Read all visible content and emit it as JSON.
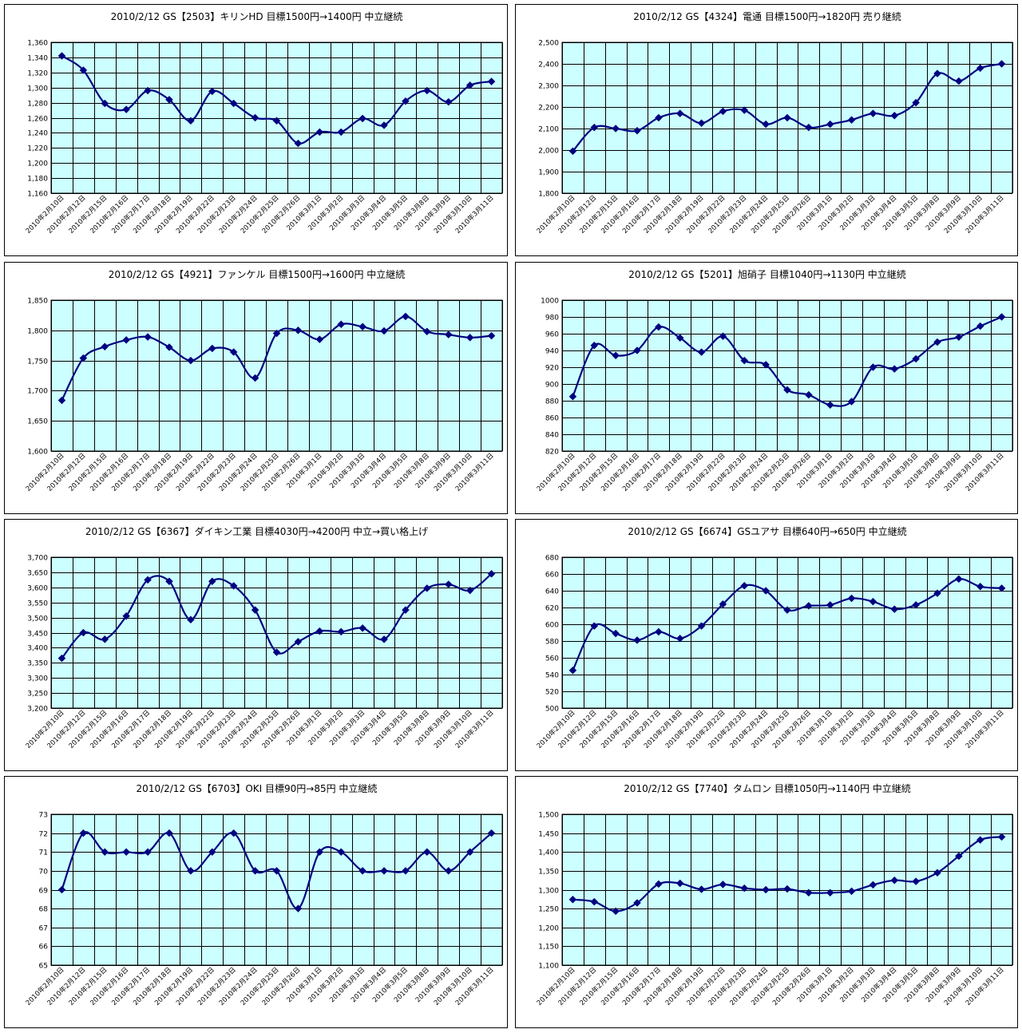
{
  "dates": [
    "2010年2月10日",
    "2010年2月12日",
    "2010年2月15日",
    "2010年2月16日",
    "2010年2月17日",
    "2010年2月18日",
    "2010年2月19日",
    "2010年2月22日",
    "2010年2月23日",
    "2010年2月24日",
    "2010年2月25日",
    "2010年2月26日",
    "2010年3月1日",
    "2010年3月2日",
    "2010年3月3日",
    "2010年3月4日",
    "2010年3月5日",
    "2010年3月8日",
    "2010年3月9日",
    "2010年3月10日",
    "2010年3月11日"
  ],
  "colors": {
    "plot_bg": "#ccffff",
    "line": "#000080",
    "grid": "#000000"
  },
  "chart_data": [
    {
      "type": "line",
      "title": "2010/2/12 GS【2503】キリンHD 目標1500円→1400円 中立継続",
      "ylim": [
        1160,
        1360
      ],
      "ystep": 20,
      "yformat": "comma",
      "x": [
        "2010年2月10日",
        "2010年2月12日",
        "2010年2月15日",
        "2010年2月16日",
        "2010年2月17日",
        "2010年2月18日",
        "2010年2月19日",
        "2010年2月22日",
        "2010年2月23日",
        "2010年2月24日",
        "2010年2月25日",
        "2010年2月26日",
        "2010年3月1日",
        "2010年3月2日",
        "2010年3月3日",
        "2010年3月4日",
        "2010年3月5日",
        "2010年3月8日",
        "2010年3月9日",
        "2010年3月10日",
        "2010年3月11日"
      ],
      "values": [
        1342,
        1323,
        1279,
        1271,
        1296,
        1284,
        1256,
        1295,
        1279,
        1260,
        1256,
        1226,
        1241,
        1241,
        1259,
        1250,
        1282,
        1296,
        1281,
        1303,
        1308
      ]
    },
    {
      "type": "line",
      "title": "2010/2/12 GS【4324】電通 目標1500円→1820円 売り継続",
      "ylim": [
        1800,
        2500
      ],
      "ystep": 100,
      "yformat": "comma",
      "x": [
        "2010年2月10日",
        "2010年2月12日",
        "2010年2月15日",
        "2010年2月16日",
        "2010年2月17日",
        "2010年2月18日",
        "2010年2月19日",
        "2010年2月22日",
        "2010年2月23日",
        "2010年2月24日",
        "2010年2月25日",
        "2010年2月26日",
        "2010年3月1日",
        "2010年3月2日",
        "2010年3月3日",
        "2010年3月4日",
        "2010年3月5日",
        "2010年3月8日",
        "2010年3月9日",
        "2010年3月10日",
        "2010年3月11日"
      ],
      "values": [
        1995,
        2105,
        2100,
        2090,
        2150,
        2170,
        2125,
        2180,
        2185,
        2120,
        2150,
        2105,
        2120,
        2140,
        2170,
        2160,
        2220,
        2355,
        2320,
        2380,
        2400
      ]
    },
    {
      "type": "line",
      "title": "2010/2/12 GS【4921】ファンケル 目標1500円→1600円 中立継続",
      "ylim": [
        1600,
        1850
      ],
      "ystep": 50,
      "yformat": "comma",
      "x": [
        "2010年2月10日",
        "2010年2月12日",
        "2010年2月15日",
        "2010年2月16日",
        "2010年2月17日",
        "2010年2月18日",
        "2010年2月19日",
        "2010年2月22日",
        "2010年2月23日",
        "2010年2月24日",
        "2010年2月25日",
        "2010年2月26日",
        "2010年3月1日",
        "2010年3月2日",
        "2010年3月3日",
        "2010年3月4日",
        "2010年3月5日",
        "2010年3月8日",
        "2010年3月9日",
        "2010年3月10日",
        "2010年3月11日"
      ],
      "values": [
        1684,
        1754,
        1773,
        1784,
        1789,
        1772,
        1750,
        1770,
        1764,
        1721,
        1795,
        1800,
        1785,
        1810,
        1806,
        1799,
        1823,
        1798,
        1793,
        1788,
        1791
      ]
    },
    {
      "type": "line",
      "title": "2010/2/12 GS【5201】旭硝子 目標1040円→1130円 中立継続",
      "ylim": [
        820,
        1000
      ],
      "ystep": 20,
      "yformat": "plain",
      "x": [
        "2010年2月10日",
        "2010年2月12日",
        "2010年2月15日",
        "2010年2月16日",
        "2010年2月17日",
        "2010年2月18日",
        "2010年2月19日",
        "2010年2月22日",
        "2010年2月23日",
        "2010年2月24日",
        "2010年2月25日",
        "2010年2月26日",
        "2010年3月1日",
        "2010年3月2日",
        "2010年3月3日",
        "2010年3月4日",
        "2010年3月5日",
        "2010年3月8日",
        "2010年3月9日",
        "2010年3月10日",
        "2010年3月11日"
      ],
      "values": [
        885,
        946,
        934,
        940,
        968,
        955,
        938,
        957,
        928,
        923,
        893,
        887,
        875,
        879,
        920,
        918,
        930,
        950,
        956,
        969,
        980
      ]
    },
    {
      "type": "line",
      "title": "2010/2/12 GS【6367】ダイキン工業 目標4030円→4200円 中立→買い格上げ",
      "ylim": [
        3200,
        3700
      ],
      "ystep": 50,
      "yformat": "comma",
      "x": [
        "2010年2月10日",
        "2010年2月12日",
        "2010年2月15日",
        "2010年2月16日",
        "2010年2月17日",
        "2010年2月18日",
        "2010年2月19日",
        "2010年2月22日",
        "2010年2月23日",
        "2010年2月24日",
        "2010年2月25日",
        "2010年2月26日",
        "2010年3月1日",
        "2010年3月2日",
        "2010年3月3日",
        "2010年3月4日",
        "2010年3月5日",
        "2010年3月8日",
        "2010年3月9日",
        "2010年3月10日",
        "2010年3月11日"
      ],
      "values": [
        3365,
        3450,
        3428,
        3505,
        3625,
        3620,
        3493,
        3620,
        3605,
        3525,
        3385,
        3420,
        3455,
        3453,
        3465,
        3428,
        3525,
        3597,
        3610,
        3590,
        3645
      ]
    },
    {
      "type": "line",
      "title": "2010/2/12 GS【6674】GSユアサ 目標640円→650円 中立継続",
      "ylim": [
        500,
        680
      ],
      "ystep": 20,
      "yformat": "plain",
      "x": [
        "2010年2月10日",
        "2010年2月12日",
        "2010年2月15日",
        "2010年2月16日",
        "2010年2月17日",
        "2010年2月18日",
        "2010年2月19日",
        "2010年2月22日",
        "2010年2月23日",
        "2010年2月24日",
        "2010年2月25日",
        "2010年2月26日",
        "2010年3月1日",
        "2010年3月2日",
        "2010年3月3日",
        "2010年3月4日",
        "2010年3月5日",
        "2010年3月8日",
        "2010年3月9日",
        "2010年3月10日",
        "2010年3月11日"
      ],
      "values": [
        545,
        598,
        589,
        581,
        591,
        583,
        598,
        624,
        646,
        640,
        617,
        622,
        623,
        631,
        627,
        618,
        623,
        637,
        654,
        645,
        643
      ]
    },
    {
      "type": "line",
      "title": "2010/2/12 GS【6703】OKI 目標90円→85円 中立継続",
      "ylim": [
        65,
        73
      ],
      "ystep": 1,
      "yformat": "plain",
      "x": [
        "2010年2月10日",
        "2010年2月12日",
        "2010年2月15日",
        "2010年2月16日",
        "2010年2月17日",
        "2010年2月18日",
        "2010年2月19日",
        "2010年2月22日",
        "2010年2月23日",
        "2010年2月24日",
        "2010年2月25日",
        "2010年2月26日",
        "2010年3月1日",
        "2010年3月2日",
        "2010年3月3日",
        "2010年3月4日",
        "2010年3月5日",
        "2010年3月8日",
        "2010年3月9日",
        "2010年3月10日",
        "2010年3月11日"
      ],
      "values": [
        69,
        72,
        71,
        71,
        71,
        72,
        70,
        71,
        72,
        70,
        70,
        68,
        71,
        71,
        70,
        70,
        70,
        71,
        70,
        71,
        72
      ]
    },
    {
      "type": "line",
      "title": "2010/2/12 GS【7740】タムロン 目標1050円→1140円 中立継続",
      "ylim": [
        1100,
        1500
      ],
      "ystep": 50,
      "yformat": "comma",
      "x": [
        "2010年2月10日",
        "2010年2月12日",
        "2010年2月15日",
        "2010年2月16日",
        "2010年2月17日",
        "2010年2月18日",
        "2010年2月19日",
        "2010年2月22日",
        "2010年2月23日",
        "2010年2月24日",
        "2010年2月25日",
        "2010年2月26日",
        "2010年3月1日",
        "2010年3月2日",
        "2010年3月3日",
        "2010年3月4日",
        "2010年3月5日",
        "2010年3月8日",
        "2010年3月9日",
        "2010年3月10日",
        "2010年3月11日"
      ],
      "values": [
        1274,
        1268,
        1243,
        1265,
        1315,
        1317,
        1301,
        1314,
        1304,
        1300,
        1302,
        1292,
        1292,
        1296,
        1313,
        1325,
        1322,
        1345,
        1389,
        1432,
        1440
      ]
    }
  ]
}
